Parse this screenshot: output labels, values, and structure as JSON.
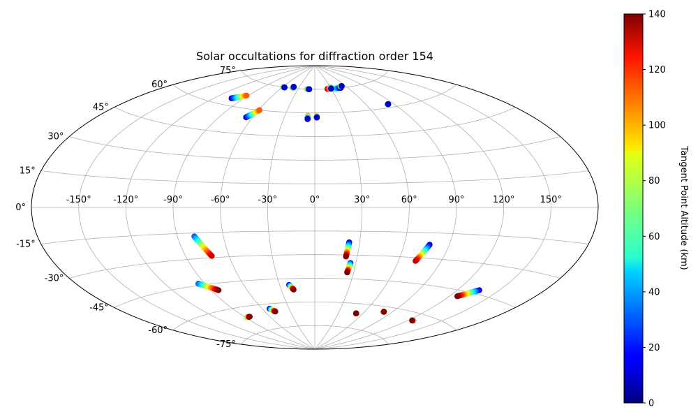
{
  "chart_data": {
    "type": "scatter",
    "projection": "aitoff",
    "title": "Solar occultations for diffraction order 154",
    "grid": true,
    "xlabel": "",
    "ylabel": "",
    "lon_ticks": [
      -150,
      -120,
      -90,
      -60,
      -30,
      0,
      30,
      60,
      90,
      120,
      150
    ],
    "lon_tick_labels": [
      "-150°",
      "-120°",
      "-90°",
      "-60°",
      "-30°",
      "0°",
      "30°",
      "60°",
      "90°",
      "120°",
      "150°"
    ],
    "lat_ticks": [
      -75,
      -60,
      -45,
      -30,
      -15,
      0,
      15,
      30,
      45,
      60,
      75
    ],
    "lat_tick_labels": [
      "-75°",
      "-60°",
      "-45°",
      "-30°",
      "-15°",
      "0°",
      "15°",
      "30°",
      "45°",
      "60°",
      "75°"
    ],
    "colorbar": {
      "label": "Tangent Point Altitude (km)",
      "colormap": "jet",
      "range": [
        0,
        140
      ],
      "ticks": [
        0,
        20,
        40,
        60,
        80,
        100,
        120,
        140
      ],
      "tick_labels": [
        "0",
        "20",
        "40",
        "60",
        "80",
        "100",
        "120",
        "140"
      ]
    },
    "tracks": [
      {
        "lon_start": -79,
        "lat_start": -17,
        "lon_end": -72,
        "lat_end": -29,
        "alt_start": 30,
        "alt_end": 130
      },
      {
        "lon_start": -95,
        "lat_start": -44,
        "lon_end": -84,
        "lat_end": -49,
        "alt_start": 30,
        "alt_end": 140
      },
      {
        "lon_start": -88,
        "lat_start": -66,
        "lon_end": -84,
        "lat_end": -66,
        "alt_start": 60,
        "alt_end": 140
      },
      {
        "lon_start": -52,
        "lat_start": -63,
        "lon_end": -48,
        "lat_end": -65,
        "alt_start": 10,
        "alt_end": 140
      },
      {
        "lon_start": -22,
        "lat_start": -49,
        "lon_end": -19,
        "lat_end": -52,
        "alt_start": 10,
        "alt_end": 140
      },
      {
        "lon_start": 23,
        "lat_start": -22,
        "lon_end": 22,
        "lat_end": -31,
        "alt_start": 10,
        "alt_end": 140
      },
      {
        "lon_start": 26,
        "lat_start": -35,
        "lon_end": 25,
        "lat_end": -41,
        "alt_start": 20,
        "alt_end": 140
      },
      {
        "lon_start": 77,
        "lat_start": -22,
        "lon_end": 72,
        "lat_end": -32,
        "alt_start": 10,
        "alt_end": 130
      },
      {
        "lon_start": 136,
        "lat_start": -43,
        "lon_end": 126,
        "lat_end": -48,
        "alt_start": 10,
        "alt_end": 140
      },
      {
        "lon_start": 81,
        "lat_start": -63,
        "lon_end": 81,
        "lat_end": -63,
        "alt_start": 140,
        "alt_end": 140
      },
      {
        "lon_start": 126,
        "lat_start": -64,
        "lon_end": 124,
        "lat_end": -64,
        "alt_start": 30,
        "alt_end": 140
      },
      {
        "lon_start": 52,
        "lat_start": -66,
        "lon_end": 52,
        "lat_end": -66,
        "alt_start": 140,
        "alt_end": 140
      },
      {
        "lon_start": -103,
        "lat_start": 64,
        "lon_end": -92,
        "lat_end": 67,
        "alt_start": 10,
        "alt_end": 110
      },
      {
        "lon_start": -66,
        "lat_start": 55,
        "lon_end": -59,
        "lat_end": 60,
        "alt_start": 10,
        "alt_end": 110
      },
      {
        "lon_start": -59,
        "lat_start": 75,
        "lon_end": -56,
        "lat_end": 75,
        "alt_start": 110,
        "alt_end": 10
      },
      {
        "lon_start": -40,
        "lat_start": 75,
        "lon_end": -41,
        "lat_end": 76,
        "alt_start": 110,
        "alt_end": 10
      },
      {
        "lon_start": -14,
        "lat_start": 75,
        "lon_end": -10,
        "lat_end": 75,
        "alt_start": 110,
        "alt_end": 10
      },
      {
        "lon_start": 23,
        "lat_start": 75,
        "lon_end": 48,
        "lat_end": 75,
        "alt_start": 130,
        "alt_end": 10
      },
      {
        "lon_start": 30,
        "lat_start": 76,
        "lon_end": 30,
        "lat_end": 75,
        "alt_start": 110,
        "alt_end": 10
      },
      {
        "lon_start": 50,
        "lat_start": 76,
        "lon_end": 53,
        "lat_end": 76,
        "alt_start": 110,
        "alt_end": 10
      },
      {
        "lon_start": -7,
        "lat_start": 58,
        "lon_end": -7,
        "lat_end": 56,
        "alt_start": 110,
        "alt_end": 10
      },
      {
        "lon_start": 2,
        "lat_start": 58,
        "lon_end": 2,
        "lat_end": 57,
        "alt_start": 110,
        "alt_end": 10
      },
      {
        "lon_start": 83,
        "lat_start": 62,
        "lon_end": 84,
        "lat_end": 62,
        "alt_start": 110,
        "alt_end": 10
      }
    ]
  }
}
